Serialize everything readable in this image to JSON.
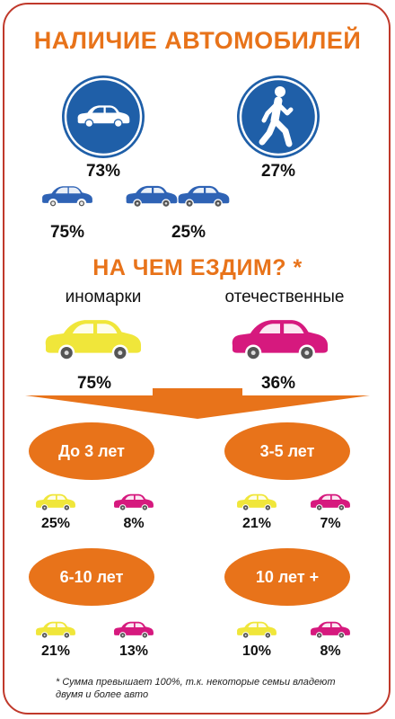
{
  "section1": {
    "title": "НАЛИЧИЕ АВТОМОБИЛЕЙ"
  },
  "ownership": {
    "with_car": "73%",
    "without_car": "27%"
  },
  "car_count": {
    "one_car": "75%",
    "two_cars": "25%"
  },
  "section2": {
    "title": "НА ЧЕМ ЕЗДИМ? *"
  },
  "brands": {
    "foreign_label": "иномарки",
    "foreign_value": "75%",
    "domestic_label": "отечественные",
    "domestic_value": "36%"
  },
  "age_groups": [
    {
      "label": "До 3 лет",
      "foreign": "25%",
      "domestic": "8%"
    },
    {
      "label": "3-5 лет",
      "foreign": "21%",
      "domestic": "7%"
    },
    {
      "label": "6-10 лет",
      "foreign": "21%",
      "domestic": "13%"
    },
    {
      "label": "10 лет +",
      "foreign": "10%",
      "domestic": "8%"
    }
  ],
  "footnote": "* Сумма превышает 100%, т.к. некоторые семьи владеют двумя и более авто",
  "colors": {
    "accent": "#e8731a",
    "sign_blue": "#1f5fa8",
    "car_blue": "#2f63b5",
    "car_yellow": "#f0e63a",
    "car_pink": "#d6197e",
    "border": "#c0392b"
  }
}
